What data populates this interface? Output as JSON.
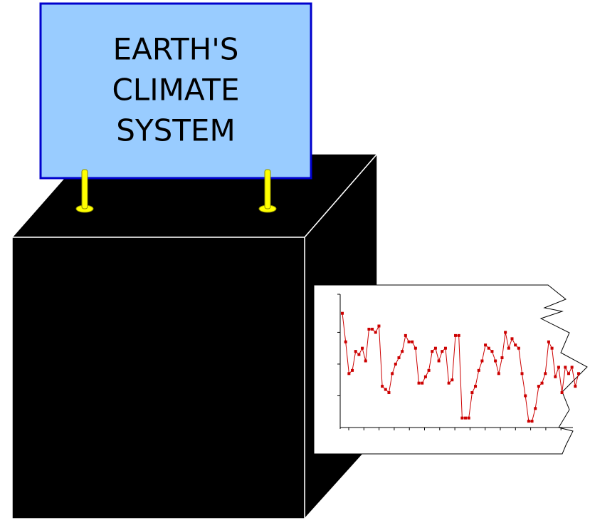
{
  "sign": {
    "lines": [
      "EARTH'S",
      "CLIMATE",
      "SYSTEM"
    ]
  },
  "chart_data": {
    "type": "line",
    "color": "#cc0000",
    "values": [
      3.6,
      2.7,
      1.7,
      1.8,
      2.4,
      2.3,
      2.5,
      2.1,
      3.1,
      3.1,
      3.0,
      3.2,
      1.3,
      1.2,
      1.1,
      1.7,
      2.0,
      2.2,
      2.4,
      2.9,
      2.7,
      2.7,
      2.5,
      1.4,
      1.4,
      1.6,
      1.8,
      2.4,
      2.5,
      2.1,
      2.4,
      2.5,
      1.4,
      1.5,
      2.9,
      2.9,
      0.3,
      0.3,
      0.3,
      1.1,
      1.3,
      1.8,
      2.1,
      2.6,
      2.5,
      2.4,
      2.1,
      1.7,
      2.2,
      3.0,
      2.5,
      2.8,
      2.6,
      2.5,
      1.7,
      1.0,
      0.2,
      0.2,
      0.6,
      1.3,
      1.4,
      1.7,
      2.7,
      2.5,
      1.6,
      1.9,
      1.1,
      1.9,
      1.7,
      1.9,
      1.3,
      1.7
    ],
    "ylim": [
      0,
      4.2
    ],
    "yticks": [
      1,
      2,
      3
    ]
  }
}
